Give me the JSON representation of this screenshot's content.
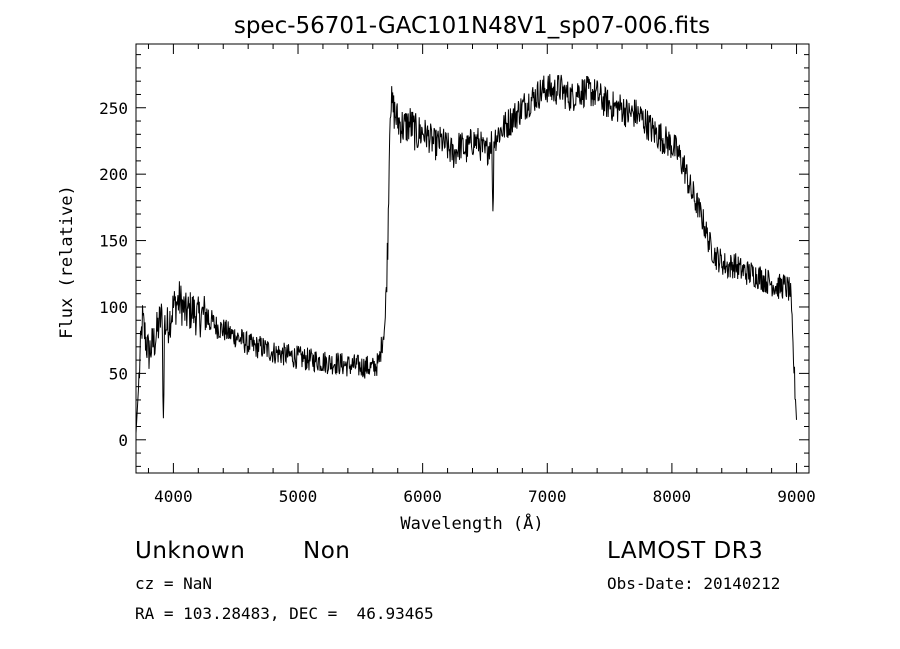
{
  "chart_data": {
    "type": "line",
    "title": "spec-56701-GAC101N48V1_sp07-006.fits",
    "xlabel": "Wavelength (Å)",
    "ylabel": "Flux (relative)",
    "xlim": [
      3700,
      9100
    ],
    "ylim": [
      -25,
      298
    ],
    "x_ticks": [
      4000,
      5000,
      6000,
      7000,
      8000,
      9000
    ],
    "y_ticks": [
      0,
      50,
      100,
      150,
      200,
      250
    ],
    "grid": false,
    "series": [
      {
        "x": [
          3700,
          3750,
          3800,
          3850,
          3900,
          3950,
          4000,
          4050,
          4100,
          4150,
          4200,
          4250,
          4300,
          4350,
          4400,
          4450,
          4500,
          4550,
          4600,
          4650,
          4700,
          4750,
          4800,
          4850,
          4900,
          4950,
          5000,
          5050,
          5100,
          5150,
          5200,
          5250,
          5300,
          5350,
          5400,
          5450,
          5500,
          5550,
          5600,
          5650,
          5700,
          5720,
          5740,
          5760,
          5780,
          5800,
          5850,
          5900,
          5950,
          6000,
          6050,
          6100,
          6150,
          6200,
          6250,
          6300,
          6350,
          6400,
          6450,
          6500,
          6550,
          6600,
          6650,
          6700,
          6750,
          6800,
          6850,
          6900,
          6950,
          7000,
          7050,
          7100,
          7150,
          7200,
          7250,
          7300,
          7350,
          7400,
          7450,
          7500,
          7550,
          7600,
          7650,
          7700,
          7750,
          7800,
          7850,
          7900,
          7950,
          8000,
          8050,
          8100,
          8150,
          8200,
          8250,
          8300,
          8350,
          8400,
          8450,
          8500,
          8550,
          8600,
          8650,
          8700,
          8750,
          8800,
          8850,
          8900,
          8950,
          9000
        ],
        "y": [
          5,
          90,
          65,
          75,
          92,
          85,
          100,
          105,
          95,
          98,
          92,
          95,
          90,
          85,
          83,
          80,
          78,
          75,
          72,
          70,
          70,
          68,
          66,
          65,
          64,
          63,
          62,
          61,
          60,
          60,
          59,
          58,
          58,
          57,
          56,
          56,
          55,
          55,
          54,
          58,
          90,
          150,
          255,
          250,
          245,
          240,
          235,
          238,
          230,
          232,
          228,
          222,
          225,
          220,
          215,
          222,
          218,
          225,
          224,
          215,
          225,
          230,
          235,
          240,
          245,
          250,
          255,
          258,
          262,
          265,
          262,
          265,
          260,
          258,
          263,
          262,
          262,
          260,
          255,
          252,
          250,
          250,
          245,
          246,
          243,
          238,
          232,
          229,
          225,
          222,
          215,
          205,
          188,
          178,
          165,
          148,
          138,
          134,
          130,
          132,
          128,
          126,
          125,
          123,
          120,
          118,
          115,
          116,
          112,
          15
        ]
      }
    ]
  },
  "info": {
    "class": "Unknown",
    "subclass": "Non",
    "survey": "LAMOST DR3",
    "cz": "cz = NaN",
    "obs_date": "Obs-Date: 20140212",
    "coords": "RA = 103.28483, DEC =  46.93465"
  }
}
